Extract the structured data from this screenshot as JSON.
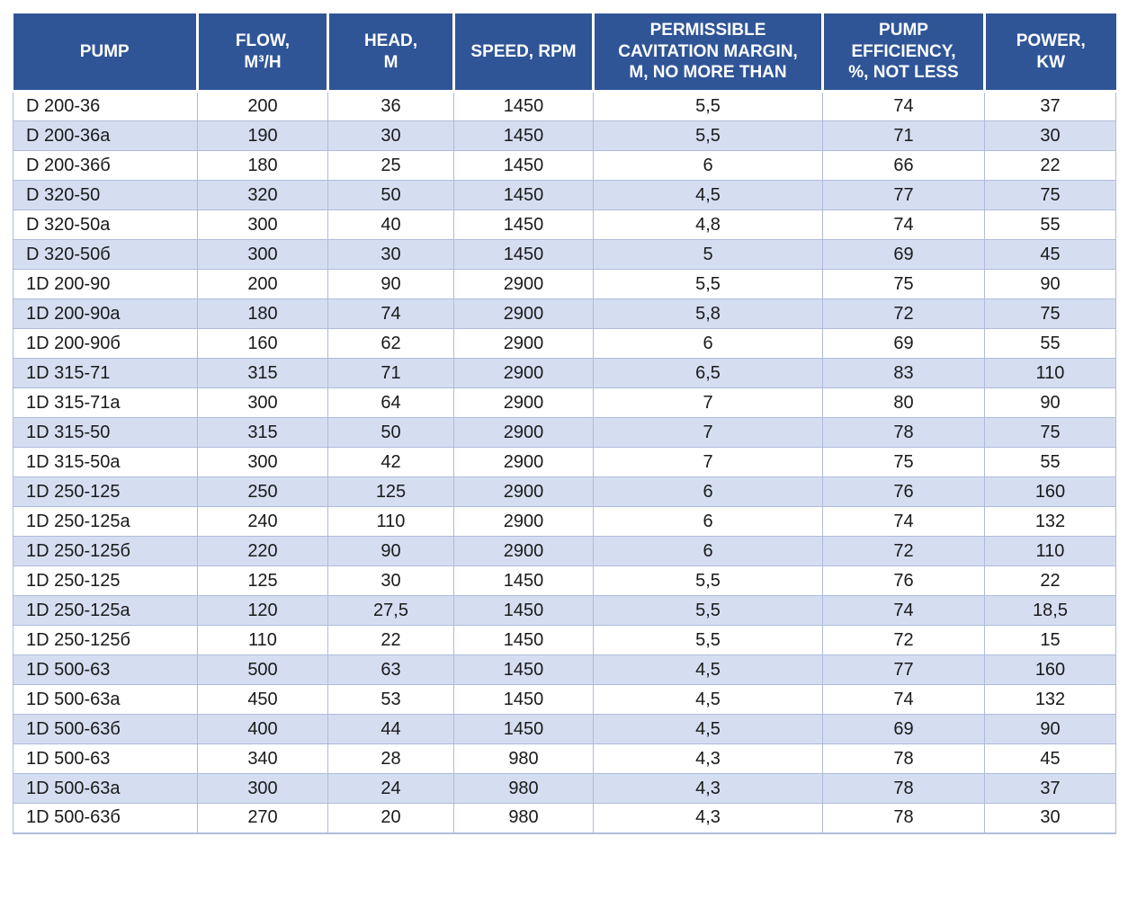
{
  "colors": {
    "header_bg": "#2F5597",
    "header_text": "#FFFFFF",
    "row_alt_bg": "#D5DEF1",
    "grid_line": "#AEBCDA",
    "text": "#1A1A1A"
  },
  "table": {
    "columns": [
      {
        "label": "PUMP",
        "align": "left"
      },
      {
        "label": "FLOW,\nM³/H",
        "align": "center"
      },
      {
        "label": "HEAD,\nM",
        "align": "center"
      },
      {
        "label": "SPEED, RPM",
        "align": "center"
      },
      {
        "label": "PERMISSIBLE\nCAVITATION MARGIN,\nM, NO MORE THAN",
        "align": "center"
      },
      {
        "label": "PUMP\nEFFICIENCY,\n%, NOT LESS",
        "align": "center"
      },
      {
        "label": "POWER,\nKW",
        "align": "center"
      }
    ],
    "rows": [
      [
        "D 200-36",
        "200",
        "36",
        "1450",
        "5,5",
        "74",
        "37"
      ],
      [
        "D 200-36a",
        "190",
        "30",
        "1450",
        "5,5",
        "71",
        "30"
      ],
      [
        "D 200-36б",
        "180",
        "25",
        "1450",
        "6",
        "66",
        "22"
      ],
      [
        "D 320-50",
        "320",
        "50",
        "1450",
        "4,5",
        "77",
        "75"
      ],
      [
        "D 320-50a",
        "300",
        "40",
        "1450",
        "4,8",
        "74",
        "55"
      ],
      [
        "D 320-50б",
        "300",
        "30",
        "1450",
        "5",
        "69",
        "45"
      ],
      [
        "1D 200-90",
        "200",
        "90",
        "2900",
        "5,5",
        "75",
        "90"
      ],
      [
        "1D 200-90a",
        "180",
        "74",
        "2900",
        "5,8",
        "72",
        "75"
      ],
      [
        "1D 200-90б",
        "160",
        "62",
        "2900",
        "6",
        "69",
        "55"
      ],
      [
        "1D 315-71",
        "315",
        "71",
        "2900",
        "6,5",
        "83",
        "110"
      ],
      [
        "1D 315-71a",
        "300",
        "64",
        "2900",
        "7",
        "80",
        "90"
      ],
      [
        "1D 315-50",
        "315",
        "50",
        "2900",
        "7",
        "78",
        "75"
      ],
      [
        "1D 315-50a",
        "300",
        "42",
        "2900",
        "7",
        "75",
        "55"
      ],
      [
        "1D 250-125",
        "250",
        "125",
        "2900",
        "6",
        "76",
        "160"
      ],
      [
        "1D 250-125a",
        "240",
        "110",
        "2900",
        "6",
        "74",
        "132"
      ],
      [
        "1D 250-125б",
        "220",
        "90",
        "2900",
        "6",
        "72",
        "110"
      ],
      [
        "1D 250-125",
        "125",
        "30",
        "1450",
        "5,5",
        "76",
        "22"
      ],
      [
        "1D 250-125a",
        "120",
        "27,5",
        "1450",
        "5,5",
        "74",
        "18,5"
      ],
      [
        "1D 250-125б",
        "110",
        "22",
        "1450",
        "5,5",
        "72",
        "15"
      ],
      [
        "1D 500-63",
        "500",
        "63",
        "1450",
        "4,5",
        "77",
        "160"
      ],
      [
        "1D 500-63a",
        "450",
        "53",
        "1450",
        "4,5",
        "74",
        "132"
      ],
      [
        "1D 500-63б",
        "400",
        "44",
        "1450",
        "4,5",
        "69",
        "90"
      ],
      [
        "1D 500-63",
        "340",
        "28",
        "980",
        "4,3",
        "78",
        "45"
      ],
      [
        "1D 500-63a",
        "300",
        "24",
        "980",
        "4,3",
        "78",
        "37"
      ],
      [
        "1D 500-63б",
        "270",
        "20",
        "980",
        "4,3",
        "78",
        "30"
      ]
    ]
  }
}
